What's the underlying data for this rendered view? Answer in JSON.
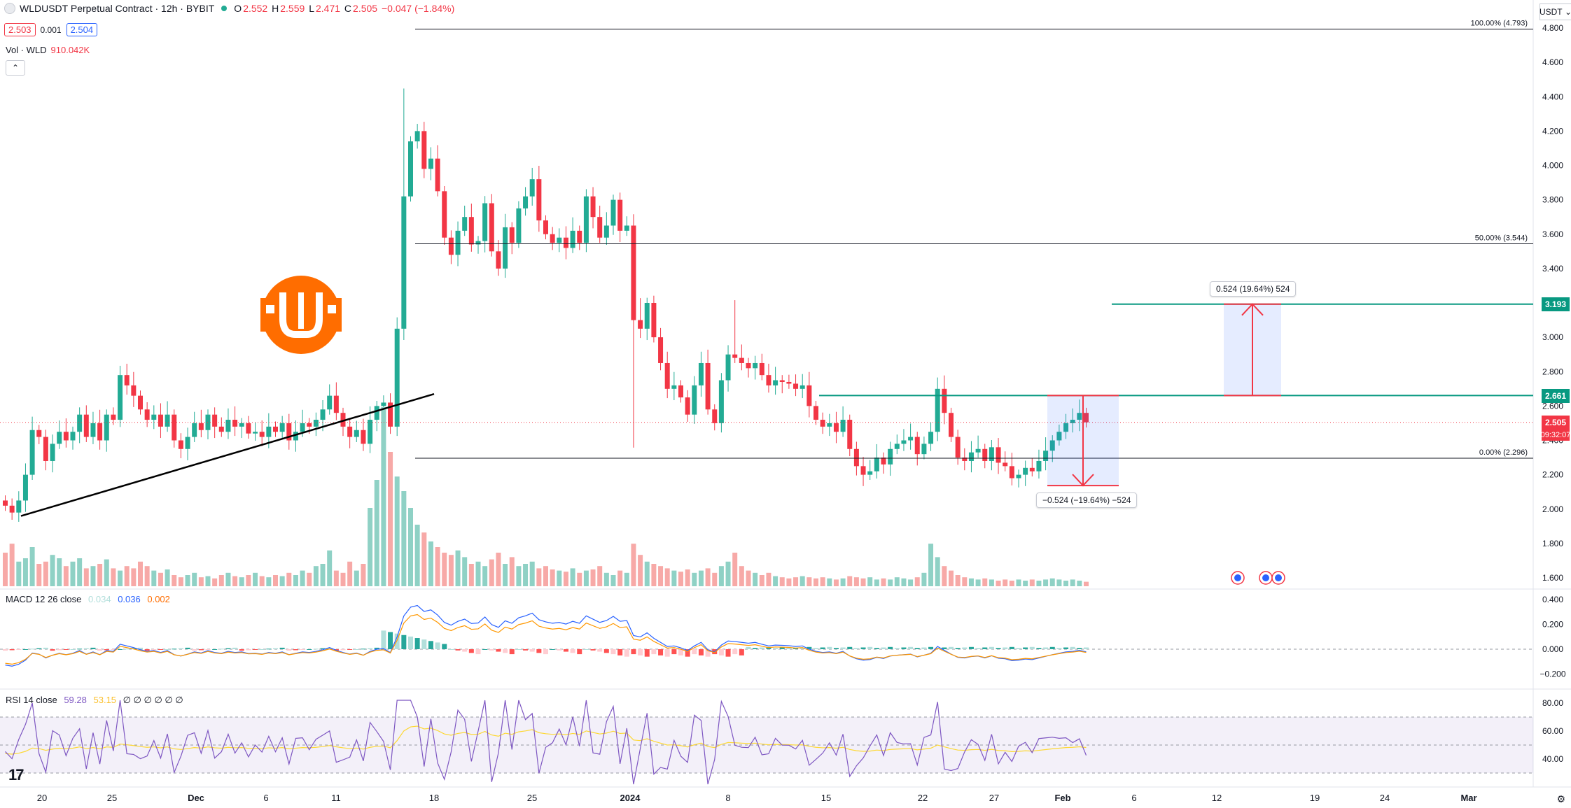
{
  "header": {
    "title": "WLDUSDT Perpetual Contract · 12h · BYBIT",
    "ohlc": {
      "o_label": "O",
      "o": "2.552",
      "h_label": "H",
      "h": "2.559",
      "l_label": "L",
      "l": "2.471",
      "c_label": "C",
      "c": "2.505",
      "change": "−0.047 (−1.84%)"
    },
    "sell_price": "2.503",
    "spread": "0.001",
    "buy_price": "2.504"
  },
  "volume_legend": {
    "label": "Vol · WLD",
    "value": "910.042K"
  },
  "collapse_icon": "chevron-up-icon",
  "macd_legend": {
    "label": "MACD 12 26 close",
    "hist": "0.034",
    "macd": "0.036",
    "signal": "0.002"
  },
  "rsi_legend": {
    "label": "RSI 14 close",
    "rsi": "59.28",
    "ma": "53.15",
    "extras": "∅ ∅ ∅ ∅ ∅ ∅"
  },
  "currency": "USDT",
  "price_tags": {
    "upper_target": "3.193",
    "resistance": "2.661",
    "last": "2.505",
    "countdown": "09:32:07"
  },
  "measure_labels": {
    "up": "0.524 (19.64%) 524",
    "down": "−0.524 (−19.64%) −524"
  },
  "fib_labels": {
    "top": "100.00% (4.793)",
    "mid": "50.00% (3.544)",
    "bottom": "0.00% (2.296)"
  },
  "colors": {
    "up": "#22ab94",
    "down": "#f23645",
    "vol_up": "#8fd1c5",
    "vol_down": "#f7a9a7",
    "macd_line": "#2962ff",
    "signal_line": "#ff9800",
    "rsi_line": "#7e57c2",
    "rsi_ma": "#fdd835",
    "accent": "#ff6d00"
  },
  "chart_data": {
    "type": "candlestick",
    "timeframe": "12h",
    "y_ticks": [
      "4.800",
      "4.600",
      "4.400",
      "4.200",
      "4.000",
      "3.800",
      "3.600",
      "3.400",
      "3.200",
      "3.000",
      "2.800",
      "2.600",
      "2.400",
      "2.200",
      "2.000",
      "1.800",
      "1.600"
    ],
    "macd_ticks": [
      "0.400",
      "0.200",
      "0.000",
      "−0.200"
    ],
    "rsi_ticks": [
      "80.00",
      "60.00",
      "40.00"
    ],
    "x_ticks": [
      "20",
      "25",
      "Dec",
      "6",
      "11",
      "18",
      "25",
      "2024",
      "8",
      "15",
      "22",
      "27",
      "Feb",
      "6",
      "12",
      "19",
      "24",
      "Mar"
    ],
    "ylim": [
      1.55,
      4.85
    ],
    "fib_levels": [
      4.793,
      3.544,
      2.296
    ],
    "horizontal_levels": [
      2.661,
      3.193
    ],
    "trendline": [
      [
        1.96,
        2.67
      ]
    ],
    "closes": [
      2.02,
      1.98,
      2.05,
      2.2,
      2.46,
      2.42,
      2.28,
      2.38,
      2.45,
      2.4,
      2.45,
      2.55,
      2.42,
      2.5,
      2.4,
      2.55,
      2.52,
      2.78,
      2.72,
      2.66,
      2.58,
      2.52,
      2.55,
      2.48,
      2.55,
      2.4,
      2.35,
      2.42,
      2.5,
      2.46,
      2.55,
      2.48,
      2.45,
      2.52,
      2.48,
      2.5,
      2.44,
      2.45,
      2.42,
      2.48,
      2.45,
      2.5,
      2.4,
      2.45,
      2.5,
      2.48,
      2.52,
      2.58,
      2.66,
      2.56,
      2.48,
      2.42,
      2.46,
      2.38,
      2.52,
      2.6,
      2.62,
      2.48,
      3.05,
      3.82,
      4.14,
      4.2,
      3.98,
      4.04,
      3.85,
      3.58,
      3.48,
      3.62,
      3.7,
      3.54,
      3.56,
      3.78,
      3.5,
      3.4,
      3.64,
      3.55,
      3.75,
      3.82,
      3.92,
      3.68,
      3.6,
      3.55,
      3.58,
      3.52,
      3.62,
      3.55,
      3.82,
      3.7,
      3.58,
      3.65,
      3.8,
      3.62,
      3.65,
      3.1,
      3.05,
      3.2,
      3.0,
      2.85,
      2.7,
      2.72,
      2.65,
      2.55,
      2.72,
      2.85,
      2.58,
      2.5,
      2.75,
      2.9,
      2.88,
      2.85,
      2.82,
      2.85,
      2.78,
      2.72,
      2.75,
      2.74,
      2.73,
      2.7,
      2.72,
      2.6,
      2.52,
      2.48,
      2.5,
      2.45,
      2.52,
      2.35,
      2.25,
      2.2,
      2.22,
      2.3,
      2.26,
      2.35,
      2.38,
      2.4,
      2.42,
      2.32,
      2.38,
      2.45,
      2.7,
      2.56,
      2.42,
      2.3,
      2.28,
      2.33,
      2.35,
      2.28,
      2.36,
      2.27,
      2.25,
      2.18,
      2.2,
      2.24,
      2.22,
      2.28,
      2.34,
      2.4,
      2.45,
      2.5,
      2.52,
      2.56,
      2.505
    ],
    "volumes": [
      0.3,
      0.38,
      0.22,
      0.25,
      0.35,
      0.2,
      0.22,
      0.28,
      0.25,
      0.18,
      0.22,
      0.25,
      0.16,
      0.18,
      0.2,
      0.24,
      0.16,
      0.14,
      0.18,
      0.16,
      0.22,
      0.18,
      0.14,
      0.12,
      0.15,
      0.1,
      0.08,
      0.1,
      0.12,
      0.08,
      0.09,
      0.07,
      0.1,
      0.12,
      0.09,
      0.08,
      0.1,
      0.12,
      0.09,
      0.08,
      0.1,
      0.09,
      0.12,
      0.1,
      0.14,
      0.12,
      0.18,
      0.2,
      0.32,
      0.14,
      0.12,
      0.22,
      0.14,
      0.2,
      0.7,
      0.95,
      1.6,
      1.2,
      0.98,
      0.85,
      0.7,
      0.55,
      0.48,
      0.4,
      0.35,
      0.3,
      0.28,
      0.32,
      0.26,
      0.2,
      0.22,
      0.18,
      0.24,
      0.3,
      0.2,
      0.26,
      0.18,
      0.2,
      0.22,
      0.16,
      0.18,
      0.15,
      0.14,
      0.13,
      0.16,
      0.12,
      0.14,
      0.15,
      0.18,
      0.12,
      0.1,
      0.14,
      0.12,
      0.38,
      0.28,
      0.22,
      0.2,
      0.18,
      0.16,
      0.14,
      0.13,
      0.15,
      0.12,
      0.14,
      0.16,
      0.12,
      0.18,
      0.22,
      0.3,
      0.18,
      0.14,
      0.12,
      0.1,
      0.12,
      0.09,
      0.08,
      0.07,
      0.08,
      0.09,
      0.08,
      0.07,
      0.08,
      0.07,
      0.06,
      0.07,
      0.09,
      0.08,
      0.07,
      0.08,
      0.06,
      0.07,
      0.06,
      0.08,
      0.07,
      0.06,
      0.08,
      0.12,
      0.38,
      0.26,
      0.18,
      0.14,
      0.1,
      0.08,
      0.07,
      0.06,
      0.07,
      0.06,
      0.05,
      0.06,
      0.05,
      0.06,
      0.05,
      0.06,
      0.05,
      0.06,
      0.07,
      0.06,
      0.05,
      0.06,
      0.05,
      0.04
    ]
  }
}
